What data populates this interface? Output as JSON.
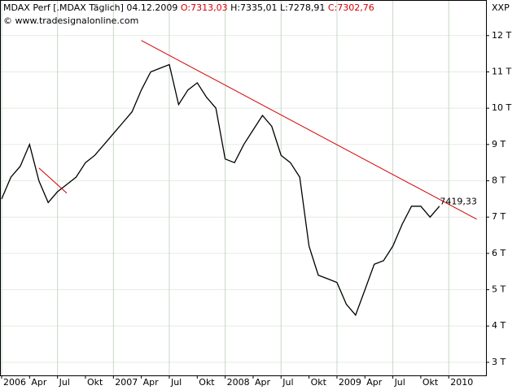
{
  "chart_data": {
    "type": "line",
    "instrument": "MDAX Perf [.MDAX  Täglich]",
    "date": "04.12.2009",
    "open": "O:7313,03",
    "high": "H:7335,01",
    "low": "L:7278,91",
    "close": "C:7302,76",
    "source": "© www.tradesignalonline.com",
    "y_axis_label": "XXP",
    "x": [
      "2006-01",
      "2006-02",
      "2006-03",
      "2006-04",
      "2006-05",
      "2006-06",
      "2006-07",
      "2006-08",
      "2006-09",
      "2006-10",
      "2006-11",
      "2006-12",
      "2007-01",
      "2007-02",
      "2007-03",
      "2007-04",
      "2007-05",
      "2007-06",
      "2007-07",
      "2007-08",
      "2007-09",
      "2007-10",
      "2007-11",
      "2007-12",
      "2008-01",
      "2008-02",
      "2008-03",
      "2008-04",
      "2008-05",
      "2008-06",
      "2008-07",
      "2008-08",
      "2008-09",
      "2008-10",
      "2008-11",
      "2008-12",
      "2009-01",
      "2009-02",
      "2009-03",
      "2009-04",
      "2009-05",
      "2009-06",
      "2009-07",
      "2009-08",
      "2009-09",
      "2009-10",
      "2009-11",
      "2009-12"
    ],
    "series": [
      {
        "name": "MDAX",
        "color": "#000000",
        "values": [
          7500,
          8100,
          8400,
          9000,
          8000,
          7400,
          7700,
          7900,
          8100,
          8500,
          8700,
          9000,
          9300,
          9600,
          9900,
          10500,
          11000,
          11100,
          11200,
          10100,
          10500,
          10700,
          10300,
          10000,
          8600,
          8500,
          9000,
          9400,
          9800,
          9500,
          8700,
          8500,
          8100,
          6200,
          5400,
          5300,
          5200,
          4600,
          4300,
          5000,
          5700,
          5800,
          6200,
          6800,
          7300,
          7300,
          7000,
          7300
        ]
      }
    ],
    "trendlines": [
      {
        "color": "#d40000",
        "x": [
          "2007-04",
          "2010-04"
        ],
        "values": [
          11865,
          6941
        ]
      },
      {
        "color": "#d40000",
        "x": [
          "2006-05",
          "2006-08"
        ],
        "values": [
          8351,
          7657
        ]
      }
    ],
    "annotation": {
      "x": "2009-11",
      "value": 7419.33,
      "value_label": "7419,33",
      "color": "#d40000"
    },
    "xlim": [
      "2006-01",
      "2010-05"
    ],
    "xticks": [
      {
        "value": "2006-01",
        "label": "2006"
      },
      {
        "value": "2006-04",
        "label": "Apr"
      },
      {
        "value": "2006-07",
        "label": "Jul"
      },
      {
        "value": "2006-10",
        "label": "Okt"
      },
      {
        "value": "2007-01",
        "label": "2007"
      },
      {
        "value": "2007-04",
        "label": "Apr"
      },
      {
        "value": "2007-07",
        "label": "Jul"
      },
      {
        "value": "2007-10",
        "label": "Okt"
      },
      {
        "value": "2008-01",
        "label": "2008"
      },
      {
        "value": "2008-04",
        "label": "Apr"
      },
      {
        "value": "2008-07",
        "label": "Jul"
      },
      {
        "value": "2008-10",
        "label": "Okt"
      },
      {
        "value": "2009-01",
        "label": "2009"
      },
      {
        "value": "2009-04",
        "label": "Apr"
      },
      {
        "value": "2009-07",
        "label": "Jul"
      },
      {
        "value": "2009-10",
        "label": "Okt"
      },
      {
        "value": "2010-01",
        "label": "2010"
      }
    ],
    "ylim": [
      2640,
      12980
    ],
    "yticks": [
      {
        "value": 3000,
        "label": "3 T"
      },
      {
        "value": 4000,
        "label": "4 T"
      },
      {
        "value": 5000,
        "label": "5 T"
      },
      {
        "value": 6000,
        "label": "6 T"
      },
      {
        "value": 7000,
        "label": "7 T"
      },
      {
        "value": 8000,
        "label": "8 T"
      },
      {
        "value": 9000,
        "label": "9 T"
      },
      {
        "value": 10000,
        "label": "10 T"
      },
      {
        "value": 11000,
        "label": "11 T"
      },
      {
        "value": 12000,
        "label": "12 T"
      }
    ],
    "grid": true
  }
}
